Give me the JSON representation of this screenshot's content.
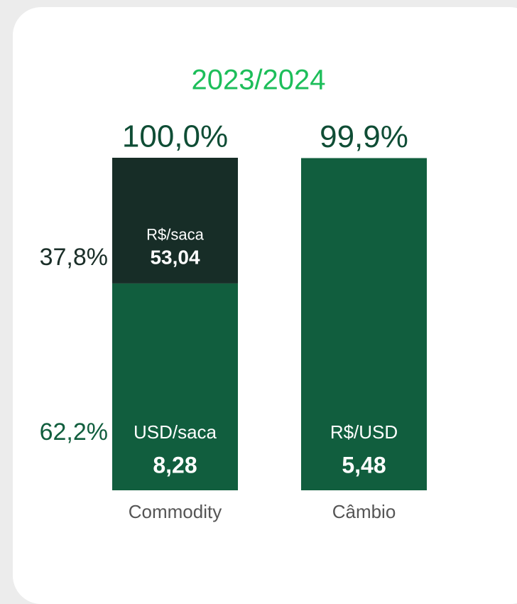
{
  "chart_data": {
    "type": "stacked-bar",
    "title": "2023/2024",
    "categories": [
      "Commodity",
      "Câmbio"
    ],
    "ylim": [
      0,
      100
    ],
    "totals": [
      100.0,
      99.9
    ],
    "total_labels": [
      "100,0%",
      "99,9%"
    ],
    "series": [
      {
        "name": "USD/saca",
        "color": "#115e3e",
        "label_color": "#115e3e",
        "values": [
          62.2,
          null
        ],
        "value_labels": [
          "62,2%",
          null
        ],
        "prices": [
          8.28,
          null
        ],
        "price_labels": [
          "8,28",
          null
        ]
      },
      {
        "name": "R$/saca",
        "color": "#172d27",
        "label_color": "#1a2e28",
        "values": [
          37.8,
          null
        ],
        "value_labels": [
          "37,8%",
          null
        ],
        "prices": [
          53.04,
          null
        ],
        "price_labels": [
          "53,04",
          null
        ]
      },
      {
        "name": "R$/USD",
        "color": "#115e3e",
        "label_color": "#115e3e",
        "values": [
          null,
          99.9
        ],
        "prices": [
          null,
          5.48
        ],
        "price_labels": [
          null,
          "5,48"
        ]
      }
    ]
  }
}
